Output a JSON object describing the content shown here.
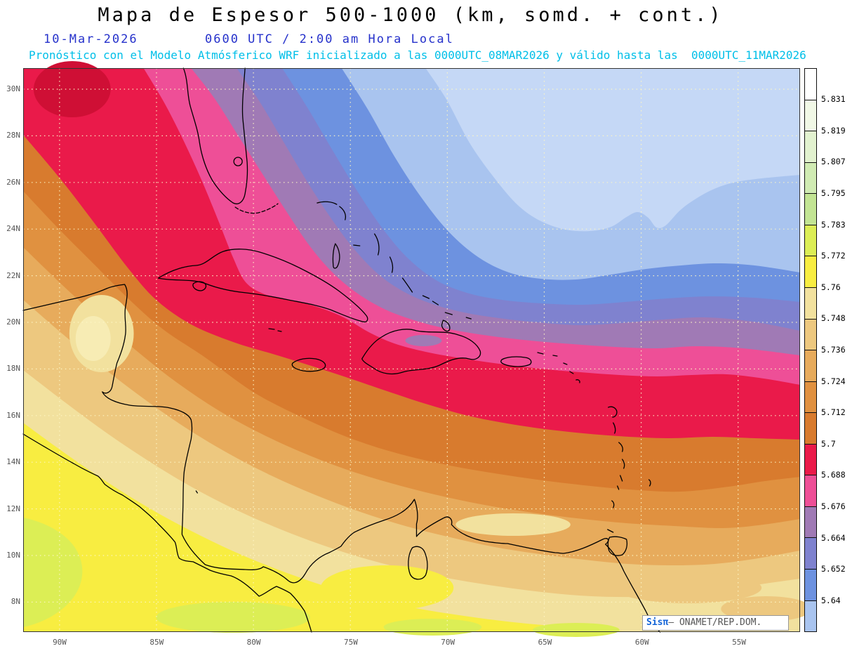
{
  "header": {
    "title": "Mapa de Espesor 500-1000 (km, somd. + cont.)",
    "date": "10-Mar-2026",
    "time": "0600 UTC / 2:00 am Hora Local",
    "forecast_line": "Pronóstico con el Modelo Atmósferico WRF inicializado a las 0000UTC_08MAR2026 y válido hasta las  0000UTC_11MAR2026"
  },
  "axes": {
    "lat_labels": [
      "30N",
      "28N",
      "26N",
      "24N",
      "22N",
      "20N",
      "18N",
      "16N",
      "14N",
      "12N",
      "10N",
      "8N"
    ],
    "lon_labels": [
      "90W",
      "85W",
      "80W",
      "75W",
      "70W",
      "65W",
      "60W",
      "55W"
    ]
  },
  "colorbar": {
    "labels": [
      "5.831",
      "5.819",
      "5.807",
      "5.795",
      "5.783",
      "5.772",
      "5.76",
      "5.748",
      "5.736",
      "5.724",
      "5.712",
      "5.7",
      "5.688",
      "5.676",
      "5.664",
      "5.652",
      "5.64"
    ],
    "segment_colors": [
      "#ffffff",
      "#f1f8e6",
      "#e2f2cf",
      "#d0ebb3",
      "#c2e493",
      "#dcee55",
      "#f8ed41",
      "#f2e19e",
      "#edc87f",
      "#e7ab5c",
      "#e09140",
      "#d87b2e",
      "#ea1a4a",
      "#ee4f97",
      "#a07ab5",
      "#7f82cf",
      "#6d92e0",
      "#a9c4ef"
    ]
  },
  "map": {
    "band_colors": {
      "lightest_blue": "#c5d8f6",
      "light_blue": "#a9c4ef",
      "medium_blue": "#6d92e0",
      "slate_blue": "#7f82cf",
      "mauve": "#a07ab5",
      "pink": "#ee4f97",
      "red": "#ea1a4a",
      "dark_red": "#cf0f35",
      "dark_orange": "#d87b2e",
      "orange": "#e09140",
      "tan": "#e7ab5c",
      "khaki": "#edc87f",
      "cream": "#f2e19e",
      "pale_yellow": "#f7ecb4",
      "yellow": "#f8ed41",
      "chartreuse": "#dcee55"
    },
    "grid_color": "#fdf6c4",
    "coastline_color": "#000000"
  },
  "watermark": {
    "brand": "Sisπ",
    "text": "— ONAMET/REP.DOM."
  }
}
